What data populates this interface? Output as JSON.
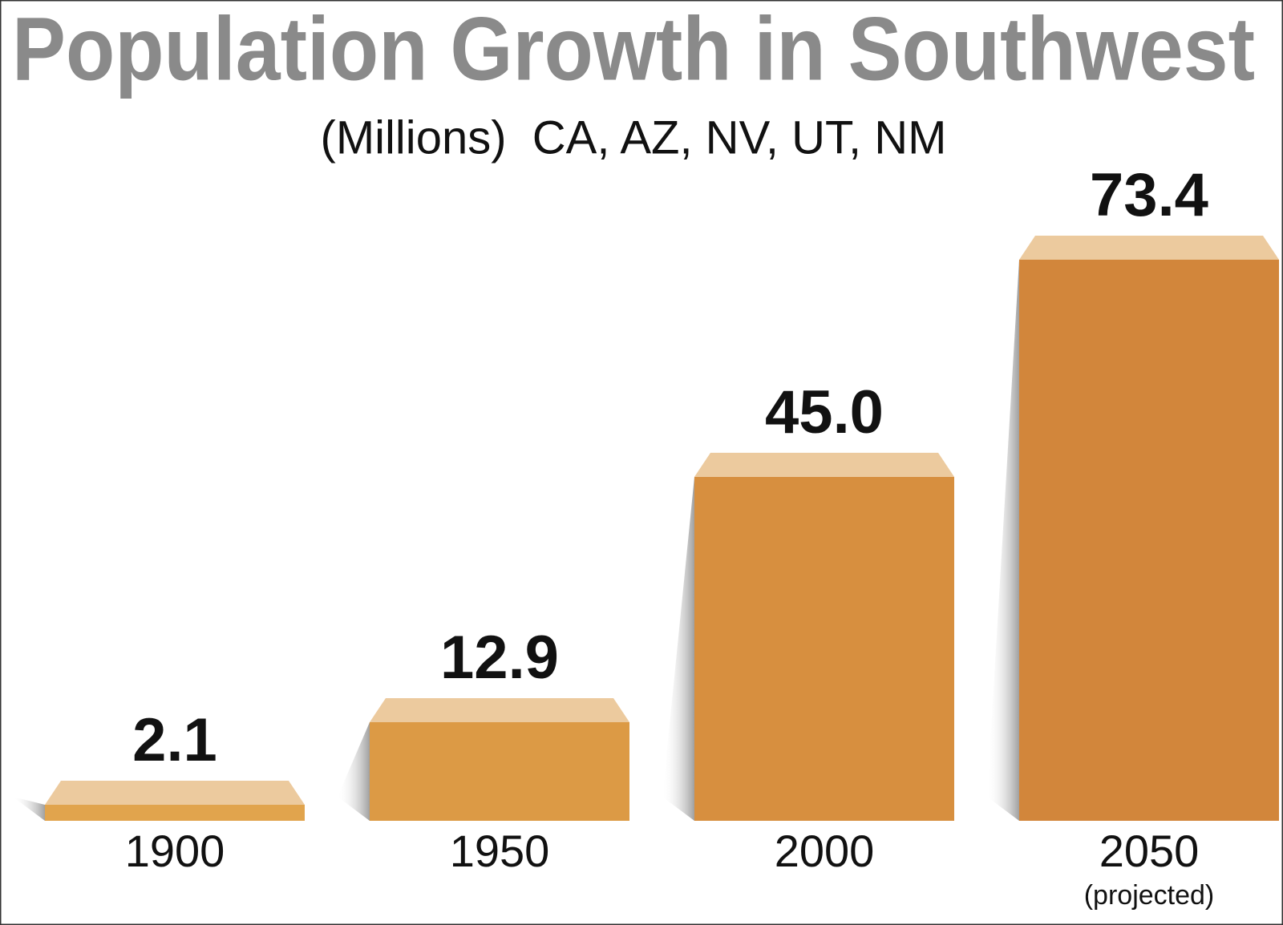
{
  "chart_data": {
    "type": "bar3d",
    "title": "Population Growth in Southwest",
    "subtitle": "(Millions)  CA, AZ, NV, UT, NM",
    "categories": [
      "1900",
      "1950",
      "2000",
      "2050"
    ],
    "values": [
      2.1,
      12.9,
      45.0,
      73.4
    ],
    "value_labels": [
      "2.1",
      "12.9",
      "45.0",
      "73.4"
    ],
    "annotation": "(projected)",
    "colors": [
      "#e1a44d",
      "#dc9a45",
      "#d78f3f",
      "#d2863b"
    ],
    "top_color": "#ecca9e"
  }
}
